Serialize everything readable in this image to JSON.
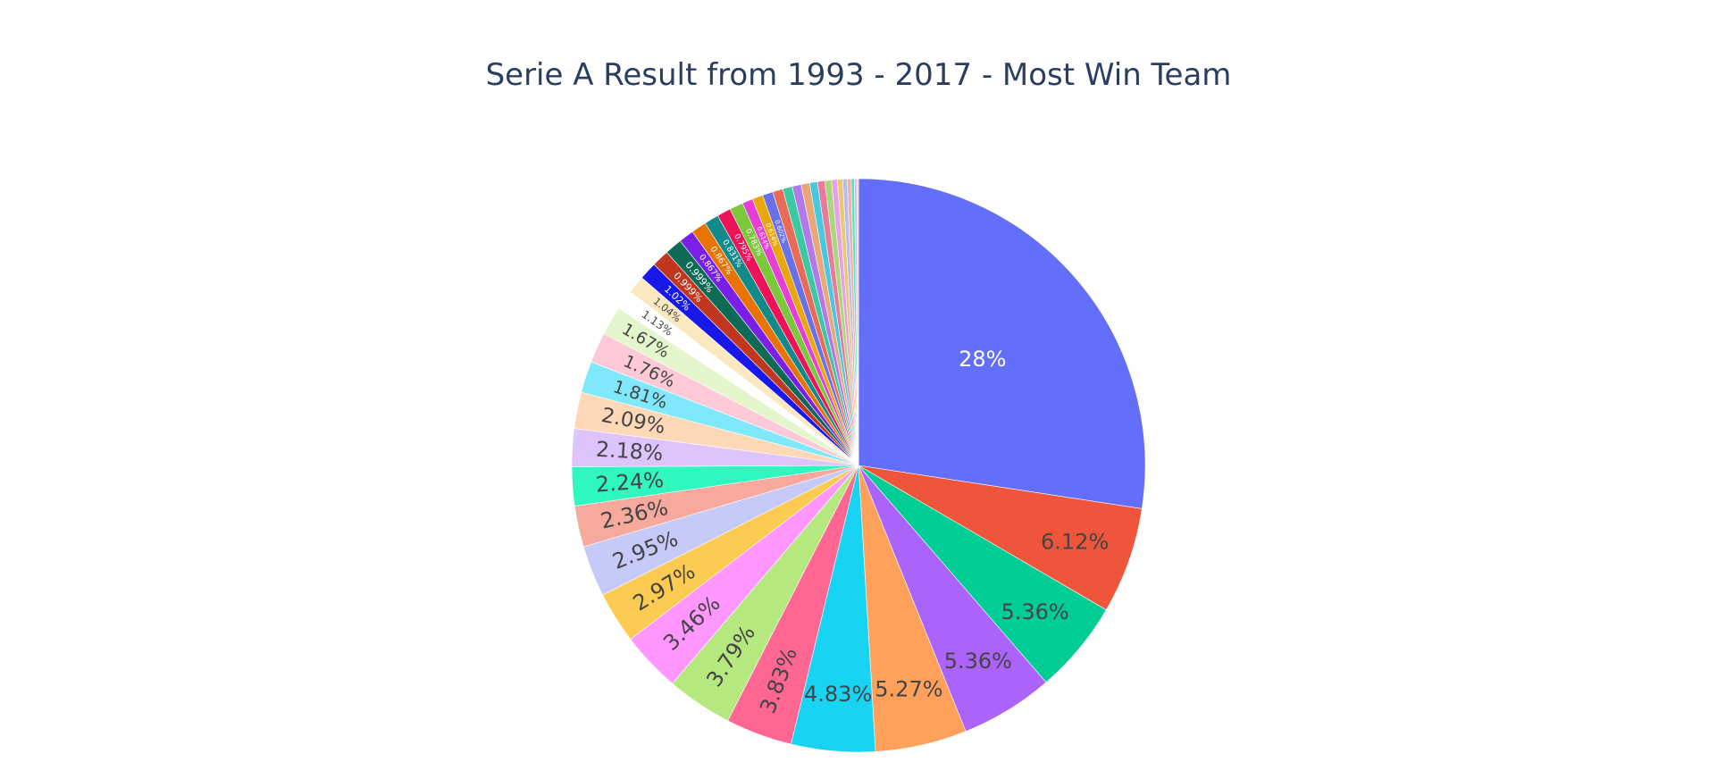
{
  "chart_data": {
    "type": "pie",
    "title": "Serie A Result from 1993 - 2017 - Most Win Team",
    "direction": "clockwise",
    "sort": "descending",
    "values": [
      28,
      6.12,
      5.36,
      5.36,
      5.27,
      4.83,
      3.83,
      3.79,
      3.46,
      2.97,
      2.95,
      2.36,
      2.24,
      2.18,
      2.09,
      1.81,
      1.76,
      1.67,
      1.13,
      1.04,
      1.02,
      0.999,
      0.999,
      0.867,
      0.867,
      0.831,
      0.795,
      0.783,
      0.614,
      0.614,
      0.602,
      0.59,
      0.55,
      0.52,
      0.49,
      0.45,
      0.42,
      0.38,
      0.34,
      0.3,
      0.26,
      0.22,
      0.18,
      0.14,
      0.1
    ],
    "labels": [
      "28%",
      "6.12%",
      "5.36%",
      "5.36%",
      "5.27%",
      "4.83%",
      "3.83%",
      "3.79%",
      "3.46%",
      "2.97%",
      "2.95%",
      "2.36%",
      "2.24%",
      "2.18%",
      "2.09%",
      "1.81%",
      "1.76%",
      "1.67%",
      "1.13%",
      "1.04%",
      "1.02%",
      "0.999%",
      "0.999%",
      "0.867%",
      "0.867%",
      "0.831%",
      "0.795%",
      "0.783%",
      "0.614%",
      "0.614%",
      "0.602%",
      "",
      "",
      "",
      "",
      "",
      "",
      "",
      "",
      "",
      "",
      "",
      "",
      "",
      ""
    ],
    "colors": [
      "#636efa",
      "#ef553b",
      "#00cc96",
      "#ab63fa",
      "#ffa15a",
      "#19d3f3",
      "#ff6692",
      "#b6e880",
      "#ff97ff",
      "#fecb52",
      "#c6caf8",
      "#f6a99c",
      "#2ef7bf",
      "#dec4fd",
      "#ffd8b8",
      "#7fe8fb",
      "#ffcad7",
      "#e4f6cc",
      "#ffffff",
      "#fae8c0",
      "#1818e8",
      "#c0361e",
      "#0d6b55",
      "#7a1fe6",
      "#e87300",
      "#128a8a",
      "#ee1258",
      "#7ac83c",
      "#e83ed8",
      "#e8a80c",
      "#6a70e8",
      "#e86a58",
      "#3cc8a0",
      "#b07ae8",
      "#e8a878",
      "#48c8e0",
      "#e87a9a",
      "#a8d878",
      "#e8a0e8",
      "#e8c870",
      "#b8bcf0",
      "#f0b0a4",
      "#50e8c0",
      "#d0b8f0",
      "#f0d0b0"
    ]
  }
}
